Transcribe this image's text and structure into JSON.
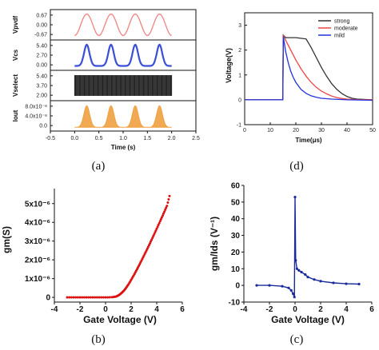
{
  "captions": {
    "a": "(a)",
    "b": "(b)",
    "c": "(c)",
    "d": "(d)"
  },
  "chart_data": [
    {
      "id": "a",
      "type": "line",
      "xlabel": "Time (s)",
      "xlim": [
        -0.5,
        2.5
      ],
      "xticks": [
        "-0.5",
        "0.0",
        "0.5",
        "1.0",
        "1.5",
        "2.0",
        "2.5"
      ],
      "panels": [
        {
          "ylabel": "Vpvdf",
          "yticks": [
            "0.67",
            "0.00",
            "-0.67"
          ],
          "color": "#f08a8a",
          "signal": "sine",
          "ylim": [
            -0.8,
            0.8
          ],
          "x": [
            0,
            2
          ],
          "cycles": 4
        },
        {
          "ylabel": "Vcs",
          "yticks": [
            "5.40",
            "2.70",
            "0.00"
          ],
          "color": "#3a4fd6",
          "signal": "pulse",
          "ylim": [
            -0.5,
            6
          ],
          "x": [
            0,
            2
          ],
          "cycles": 4
        },
        {
          "ylabel": "Vselect",
          "yticks": [
            "5.40",
            "3.70",
            "2.00"
          ],
          "color": "#1a1a1a",
          "signal": "dense",
          "ylim": [
            1.6,
            5.8
          ],
          "x": [
            0,
            2
          ]
        },
        {
          "ylabel": "Iout",
          "yticks": [
            "8.0x10⁻⁸",
            "4.0x10⁻⁸",
            "0.0"
          ],
          "color": "#f0a040",
          "signal": "filled-pulse",
          "ylim": [
            -5e-09,
            9e-08
          ],
          "x": [
            0,
            2
          ],
          "cycles": 4
        }
      ]
    },
    {
      "id": "d",
      "type": "line",
      "xlabel": "Time(μs)",
      "ylabel": "Voltage(V)",
      "xlim": [
        0,
        50
      ],
      "ylim": [
        -1,
        3
      ],
      "xticks": [
        0,
        10,
        20,
        30,
        40,
        50
      ],
      "yticks": [
        -1,
        0,
        1,
        2,
        3
      ],
      "series": [
        {
          "name": "strong",
          "color": "#333333",
          "x": [
            0,
            14.9,
            15.1,
            16,
            20,
            24,
            26,
            28,
            30,
            32,
            34,
            36,
            38,
            40,
            42,
            44,
            46,
            48,
            50
          ],
          "y": [
            0,
            0,
            2.6,
            2.5,
            2.5,
            2.45,
            2.1,
            1.7,
            1.3,
            0.95,
            0.65,
            0.42,
            0.25,
            0.13,
            0.06,
            0.03,
            0.02,
            0.01,
            0.0
          ]
        },
        {
          "name": "moderate",
          "color": "#ee4444",
          "x": [
            0,
            14.9,
            15.1,
            16,
            18,
            20,
            22,
            24,
            26,
            28,
            30,
            32,
            34,
            36,
            38,
            40,
            44,
            50
          ],
          "y": [
            0,
            0,
            2.6,
            2.4,
            2.0,
            1.6,
            1.25,
            0.95,
            0.7,
            0.5,
            0.35,
            0.24,
            0.15,
            0.09,
            0.05,
            0.03,
            0.01,
            0.0
          ]
        },
        {
          "name": "mild",
          "color": "#2233dd",
          "x": [
            0,
            14.9,
            15.1,
            16,
            17,
            18,
            19,
            20,
            22,
            24,
            26,
            28,
            30,
            34,
            40,
            50
          ],
          "y": [
            0,
            0,
            2.55,
            1.95,
            1.5,
            1.15,
            0.9,
            0.7,
            0.42,
            0.26,
            0.16,
            0.1,
            0.06,
            0.03,
            0.0,
            -0.02
          ]
        }
      ],
      "legend": "top-right"
    },
    {
      "id": "b",
      "type": "scatter",
      "xlabel": "Gate Voltage (V)",
      "ylabel": "gm(S)",
      "xlim": [
        -4,
        6
      ],
      "ylim": [
        -2.5e-07,
        5.8e-06
      ],
      "xticks": [
        -4,
        -2,
        0,
        2,
        4,
        6
      ],
      "yticks": [
        0,
        1e-06,
        2e-06,
        3e-06,
        4e-06,
        5e-06
      ],
      "yticklabels": [
        "0",
        "1x10⁻⁶",
        "2x10⁻⁶",
        "3x10⁻⁶",
        "4x10⁻⁶",
        "5x10⁻⁶"
      ],
      "color": "#dd1111",
      "series": [
        {
          "x": [
            -3,
            -2.5,
            -2,
            -1.5,
            -1,
            -0.5,
            0,
            0.5,
            0.8,
            1.0,
            1.2,
            1.4,
            1.6,
            1.8,
            2.0,
            2.2,
            2.4,
            2.6,
            2.8,
            3.0,
            3.2,
            3.4,
            3.6,
            3.8,
            4.0,
            4.2,
            4.4,
            4.6,
            4.8,
            5.0
          ],
          "y": [
            0,
            0,
            0,
            0,
            0,
            0,
            0,
            1e-08,
            4e-08,
            1e-07,
            2e-07,
            3.3e-07,
            5e-07,
            7e-07,
            9.3e-07,
            1.17e-06,
            1.42e-06,
            1.68e-06,
            1.95e-06,
            2.22e-06,
            2.5e-06,
            2.78e-06,
            3.07e-06,
            3.36e-06,
            3.66e-06,
            3.96e-06,
            4.26e-06,
            4.57e-06,
            4.88e-06,
            5.4e-06
          ]
        }
      ]
    },
    {
      "id": "c",
      "type": "line",
      "xlabel": "Gate Voltage (V)",
      "ylabel": "gm/Ids (V⁻¹)",
      "xlim": [
        -4,
        6
      ],
      "ylim": [
        -10,
        60
      ],
      "xticks": [
        -4,
        -2,
        0,
        2,
        4,
        6
      ],
      "yticks": [
        -10,
        0,
        10,
        20,
        30,
        40,
        50,
        60
      ],
      "color": "#1a2a9a",
      "series": [
        {
          "x": [
            -3,
            -2,
            -1,
            -0.5,
            -0.3,
            -0.15,
            -0.05,
            0.0,
            0.05,
            0.15,
            0.3,
            0.5,
            0.8,
            1.0,
            1.5,
            2.0,
            3.0,
            4.0,
            5.0
          ],
          "y": [
            0,
            0,
            -0.5,
            -1.5,
            -3,
            -5,
            -7,
            53,
            15,
            10,
            9,
            8,
            6.5,
            5,
            3.5,
            2.5,
            1.5,
            1.0,
            0.8
          ]
        }
      ]
    }
  ]
}
